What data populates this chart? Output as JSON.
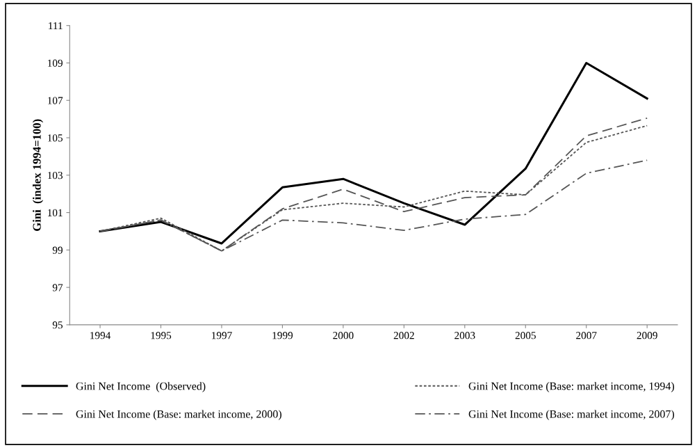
{
  "chart_data": {
    "type": "line",
    "ylabel": "Gini  (index 1994=100)",
    "categories": [
      "1994",
      "1995",
      "1997",
      "1999",
      "2000",
      "2002",
      "2003",
      "2005",
      "2007",
      "2009"
    ],
    "series": [
      {
        "name": "Gini Net Income  (Observed)",
        "color": "#000000",
        "line_style": "solid",
        "values": [
          100,
          100.5,
          99.35,
          102.35,
          102.8,
          101.5,
          100.35,
          103.35,
          109,
          107.1
        ]
      },
      {
        "name": "Gini Net Income (Base: market income, 1994)",
        "color": "#555555",
        "line_style": "dotted",
        "values": [
          100,
          100.7,
          98.95,
          101.15,
          101.5,
          101.3,
          102.15,
          101.95,
          104.75,
          105.65
        ]
      },
      {
        "name": "Gini Net Income (Base: market income, 2000)",
        "color": "#555555",
        "line_style": "dashed",
        "values": [
          100,
          100.6,
          98.95,
          101.2,
          102.25,
          101.05,
          101.8,
          101.95,
          105.1,
          106.05
        ]
      },
      {
        "name": "Gini Net Income (Base: market income, 2007)",
        "color": "#555555",
        "line_style": "dashdot",
        "values": [
          100,
          100.6,
          98.95,
          100.6,
          100.45,
          100.05,
          100.65,
          100.9,
          103.1,
          103.8
        ]
      }
    ],
    "ylim": [
      95,
      111
    ],
    "yticks": [
      95,
      97,
      99,
      101,
      103,
      105,
      107,
      109,
      111
    ],
    "grid": false,
    "legend": "bottom",
    "marker": "none"
  }
}
